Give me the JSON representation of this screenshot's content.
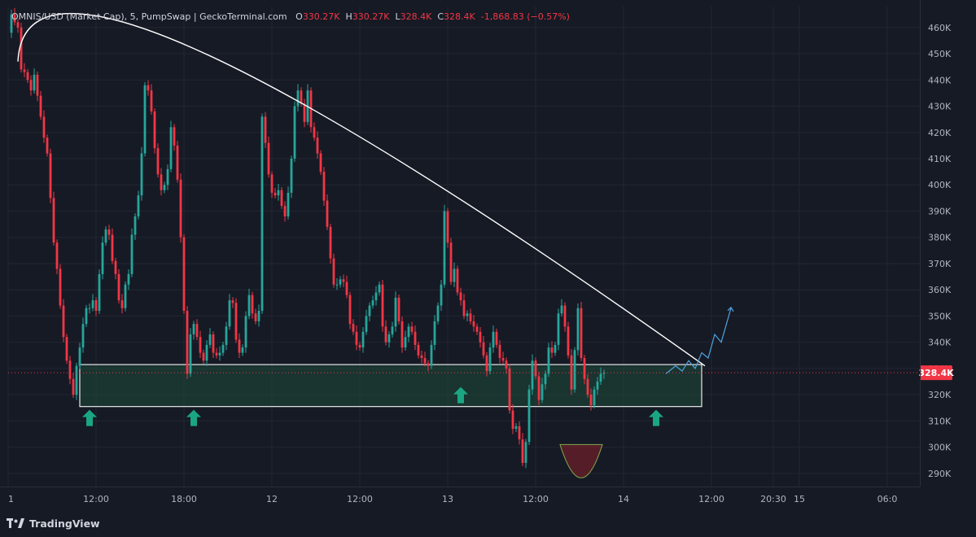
{
  "header": {
    "symbol": "OMNIS/USD (Market Cap), 5, PumpSwap | GeckoTerminal.com",
    "o_label": "O",
    "o_value": "330.27K",
    "h_label": "H",
    "h_value": "330.27K",
    "l_label": "L",
    "l_value": "328.4K",
    "c_label": "C",
    "c_value": "328.4K",
    "change": "-1,868.83 (−0.57%)"
  },
  "footer": {
    "brand": "TradingView"
  },
  "colors": {
    "up": "#26a69a",
    "down": "#f23645",
    "bg": "#161a25",
    "grid": "#232632",
    "text": "#b2b5be",
    "zone": "#1f4a3a",
    "arrow": "#1aa682"
  },
  "chart_data": {
    "type": "candlestick",
    "title": "",
    "ylim": [
      285,
      468
    ],
    "y_ticks": [
      "460K",
      "450K",
      "440K",
      "430K",
      "420K",
      "410K",
      "400K",
      "390K",
      "380K",
      "370K",
      "360K",
      "350K",
      "340K",
      "330K",
      "320K",
      "310K",
      "300K",
      "290K"
    ],
    "y_tick_values": [
      460,
      450,
      440,
      430,
      420,
      410,
      400,
      390,
      380,
      370,
      360,
      350,
      340,
      330,
      320,
      310,
      300,
      290
    ],
    "x_ticks": [
      "1",
      "12:00",
      "18:00",
      "12",
      "12:00",
      "13",
      "12:00",
      "14",
      "12:00",
      "20:30",
      "15",
      "06:0"
    ],
    "x_tick_values": [
      0,
      27,
      54,
      81,
      108,
      135,
      162,
      189,
      216,
      235,
      243,
      270
    ],
    "x_range": [
      0,
      280
    ],
    "last_price": {
      "label": "328.4K",
      "value": 328.4
    },
    "price_path": [
      [
        0,
        458
      ],
      [
        1,
        465
      ],
      [
        2,
        462
      ],
      [
        3,
        460
      ],
      [
        4,
        444
      ],
      [
        5,
        443
      ],
      [
        6,
        440
      ],
      [
        7,
        436
      ],
      [
        8,
        442
      ],
      [
        9,
        434
      ],
      [
        10,
        426
      ],
      [
        11,
        418
      ],
      [
        12,
        412
      ],
      [
        13,
        395
      ],
      [
        14,
        378
      ],
      [
        15,
        368
      ],
      [
        16,
        354
      ],
      [
        17,
        342
      ],
      [
        18,
        333
      ],
      [
        19,
        326
      ],
      [
        20,
        320
      ],
      [
        21,
        331
      ],
      [
        22,
        338
      ],
      [
        23,
        347
      ],
      [
        24,
        353
      ],
      [
        25,
        353
      ],
      [
        26,
        356
      ],
      [
        27,
        352
      ],
      [
        28,
        366
      ],
      [
        29,
        378
      ],
      [
        30,
        383
      ],
      [
        31,
        381
      ],
      [
        32,
        371
      ],
      [
        33,
        366
      ],
      [
        34,
        356
      ],
      [
        35,
        353
      ],
      [
        36,
        362
      ],
      [
        37,
        366
      ],
      [
        38,
        381
      ],
      [
        39,
        388
      ],
      [
        40,
        396
      ],
      [
        41,
        412
      ],
      [
        42,
        438
      ],
      [
        43,
        436
      ],
      [
        44,
        428
      ],
      [
        45,
        414
      ],
      [
        46,
        404
      ],
      [
        47,
        398
      ],
      [
        48,
        400
      ],
      [
        49,
        406
      ],
      [
        50,
        422
      ],
      [
        51,
        415
      ],
      [
        52,
        402
      ],
      [
        53,
        380
      ],
      [
        54,
        352
      ],
      [
        55,
        328
      ],
      [
        56,
        343
      ],
      [
        57,
        347
      ],
      [
        58,
        342
      ],
      [
        59,
        336
      ],
      [
        60,
        333
      ],
      [
        61,
        339
      ],
      [
        62,
        343
      ],
      [
        63,
        336
      ],
      [
        64,
        335
      ],
      [
        65,
        336
      ],
      [
        66,
        339
      ],
      [
        67,
        346
      ],
      [
        68,
        356
      ],
      [
        69,
        355
      ],
      [
        70,
        341
      ],
      [
        71,
        336
      ],
      [
        72,
        338
      ],
      [
        73,
        350
      ],
      [
        74,
        358
      ],
      [
        75,
        351
      ],
      [
        76,
        348
      ],
      [
        77,
        352
      ],
      [
        78,
        426
      ],
      [
        79,
        416
      ],
      [
        80,
        404
      ],
      [
        81,
        397
      ],
      [
        82,
        396
      ],
      [
        83,
        398
      ],
      [
        84,
        392
      ],
      [
        85,
        388
      ],
      [
        86,
        397
      ],
      [
        87,
        410
      ],
      [
        88,
        430
      ],
      [
        89,
        436
      ],
      [
        90,
        431
      ],
      [
        91,
        424
      ],
      [
        92,
        436
      ],
      [
        93,
        422
      ],
      [
        94,
        418
      ],
      [
        95,
        412
      ],
      [
        96,
        405
      ],
      [
        97,
        394
      ],
      [
        98,
        384
      ],
      [
        99,
        372
      ],
      [
        100,
        362
      ],
      [
        101,
        362
      ],
      [
        102,
        364
      ],
      [
        103,
        363
      ],
      [
        104,
        358
      ],
      [
        105,
        347
      ],
      [
        106,
        344
      ],
      [
        107,
        339
      ],
      [
        108,
        338
      ],
      [
        109,
        344
      ],
      [
        110,
        350
      ],
      [
        111,
        354
      ],
      [
        112,
        356
      ],
      [
        113,
        359
      ],
      [
        114,
        362
      ],
      [
        115,
        346
      ],
      [
        116,
        340
      ],
      [
        117,
        343
      ],
      [
        118,
        346
      ],
      [
        119,
        357
      ],
      [
        120,
        348
      ],
      [
        121,
        338
      ],
      [
        122,
        342
      ],
      [
        123,
        346
      ],
      [
        124,
        344
      ],
      [
        125,
        339
      ],
      [
        126,
        335
      ],
      [
        127,
        334
      ],
      [
        128,
        332
      ],
      [
        129,
        331
      ],
      [
        130,
        339
      ],
      [
        131,
        348
      ],
      [
        132,
        354
      ],
      [
        133,
        362
      ],
      [
        134,
        390
      ],
      [
        135,
        378
      ],
      [
        136,
        363
      ],
      [
        137,
        368
      ],
      [
        138,
        359
      ],
      [
        139,
        356
      ],
      [
        140,
        350
      ],
      [
        141,
        351
      ],
      [
        142,
        348
      ],
      [
        143,
        346
      ],
      [
        144,
        344
      ],
      [
        145,
        340
      ],
      [
        146,
        335
      ],
      [
        147,
        329
      ],
      [
        148,
        338
      ],
      [
        149,
        344
      ],
      [
        150,
        339
      ],
      [
        151,
        334
      ],
      [
        152,
        333
      ],
      [
        153,
        330
      ],
      [
        154,
        314
      ],
      [
        155,
        307
      ],
      [
        156,
        308
      ],
      [
        157,
        303
      ],
      [
        158,
        294
      ],
      [
        159,
        302
      ],
      [
        160,
        322
      ],
      [
        161,
        333
      ],
      [
        162,
        327
      ],
      [
        163,
        318
      ],
      [
        164,
        324
      ],
      [
        165,
        328
      ],
      [
        166,
        338
      ],
      [
        167,
        336
      ],
      [
        168,
        339
      ],
      [
        169,
        351
      ],
      [
        170,
        354
      ],
      [
        171,
        346
      ],
      [
        172,
        335
      ],
      [
        173,
        322
      ],
      [
        174,
        337
      ],
      [
        175,
        353
      ],
      [
        176,
        334
      ],
      [
        177,
        326
      ],
      [
        178,
        320
      ],
      [
        179,
        316
      ],
      [
        180,
        322
      ],
      [
        181,
        325
      ],
      [
        182,
        328
      ],
      [
        183,
        328.4
      ]
    ],
    "resistance_arc": {
      "start": [
        3,
        447
      ],
      "peak": [
        57,
        452
      ],
      "end": [
        214,
        331
      ]
    },
    "support_zone": {
      "low": 315.5,
      "high": 331.5,
      "x_start": 22,
      "x_end": 213
    },
    "projection_path": [
      [
        202,
        328
      ],
      [
        205,
        331
      ],
      [
        207,
        329
      ],
      [
        209,
        333
      ],
      [
        211,
        330
      ],
      [
        213,
        336
      ],
      [
        215,
        334
      ],
      [
        217,
        343
      ],
      [
        219,
        340
      ],
      [
        222,
        353
      ]
    ],
    "dip_x": 176,
    "dip_low": 288,
    "arrows_x": [
      25,
      57,
      139,
      199
    ]
  }
}
